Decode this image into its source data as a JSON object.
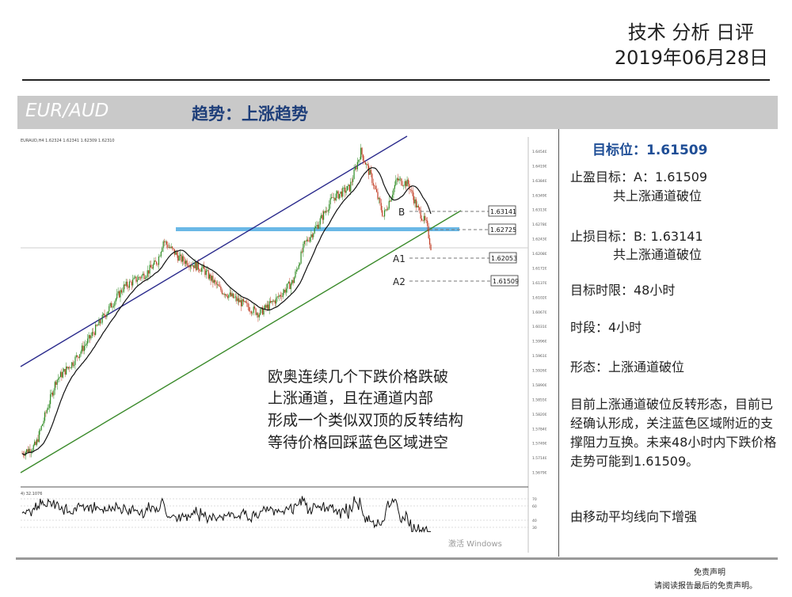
{
  "header": {
    "title": "技术 分析 日评",
    "date": "2019年06月28日"
  },
  "band": {
    "pair": "EUR/AUD",
    "trend": "趋势：上涨趋势"
  },
  "chart": {
    "symbol_line": "EURAUD,H4  1.62324 1.62341 1.62309 1.62310",
    "levels": [
      {
        "label": "B",
        "price": "1.63141"
      },
      {
        "label": "",
        "price": "1.62725"
      },
      {
        "label": "A1",
        "price": "1.62053"
      },
      {
        "label": "A2",
        "price": "1.61509"
      }
    ],
    "annotation": [
      "欧奥连续几个下跌价格跌破",
      "上涨通道，且在通道内部",
      "形成一个类似双顶的反转结构",
      "等待价格回踩蓝色区域进空"
    ],
    "indicator_label": "4) 32.1076",
    "watermark": "激活 Windows"
  },
  "chart_data": {
    "type": "line",
    "x": [
      1,
      10,
      20,
      30,
      40,
      50,
      60,
      70,
      80,
      90
    ],
    "series": [
      {
        "values": [
          1.572,
          1.583,
          1.596,
          1.612,
          1.627,
          1.617,
          1.604,
          1.622,
          1.641,
          1.623
        ]
      }
    ],
    "ylim": [
      1.565,
      1.649
    ],
    "y_ticks": [
      "1.64540",
      "1.64190",
      "1.63840",
      "1.63490",
      "1.63130",
      "1.62780",
      "1.62430",
      "1.62080",
      "1.61720",
      "1.61370",
      "1.61020",
      "1.60670",
      "1.60310",
      "1.59960",
      "1.59610",
      "1.59260",
      "1.58900",
      "1.58550",
      "1.58200",
      "1.57840",
      "1.57490",
      "1.57140",
      "1.56790"
    ],
    "indicator_ticks": [
      "70",
      "60",
      "40",
      "30"
    ],
    "colors": {
      "candles_up": "#2e8b22",
      "candles_down": "#c23b22",
      "ma": "#111111",
      "channel_upper": "#2a2a8c",
      "channel_lower": "#3a8a2a",
      "zone": "#6ab8e6"
    }
  },
  "panel": {
    "target": "目标位：1.61509",
    "tp_line1": "止盈目标：A：1.61509",
    "tp_line2": "共上涨通道破位",
    "sl_line1": "止损目标：B: 1.63141",
    "sl_line2": "共上涨通道破位",
    "timeframe": "目标时限：48小时",
    "period": "时段：4小时",
    "pattern": "形态：上涨通道破位",
    "desc": "目前上涨通道破位反转形态，目前已经确认形成，关注蓝色区域附近的支撑阻力互换。未来48小时内下跌价格走势可能到1.61509。",
    "ma_note": "由移动平均线向下增强"
  },
  "footer": {
    "disclaimer_title": "免责声明",
    "disclaimer_text": "请阅读报告最后的免责声明。"
  }
}
